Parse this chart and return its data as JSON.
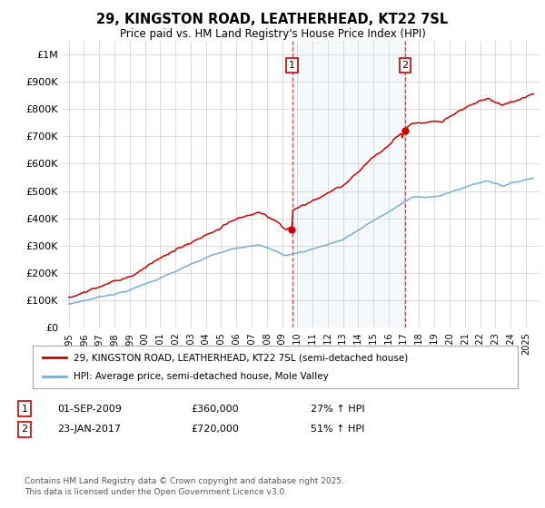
{
  "title_line1": "29, KINGSTON ROAD, LEATHERHEAD, KT22 7SL",
  "title_line2": "Price paid vs. HM Land Registry's House Price Index (HPI)",
  "y_values": [
    0,
    100000,
    200000,
    300000,
    400000,
    500000,
    600000,
    700000,
    800000,
    900000,
    1000000
  ],
  "ylim": [
    0,
    1050000
  ],
  "transaction1_date": 2009.67,
  "transaction1_price": 360000,
  "transaction1_label": "1",
  "transaction1_pct": "27% ↑ HPI",
  "transaction1_display_date": "01-SEP-2009",
  "transaction2_date": 2017.07,
  "transaction2_price": 720000,
  "transaction2_label": "2",
  "transaction2_pct": "51% ↑ HPI",
  "transaction2_display_date": "23-JAN-2017",
  "legend_line1": "29, KINGSTON ROAD, LEATHERHEAD, KT22 7SL (semi-detached house)",
  "legend_line2": "HPI: Average price, semi-detached house, Mole Valley",
  "footer": "Contains HM Land Registry data © Crown copyright and database right 2025.\nThis data is licensed under the Open Government Licence v3.0.",
  "line1_color": "#cc0000",
  "line2_color": "#7aacda",
  "shade_color": "#ddeeff",
  "grid_color": "#cccccc",
  "bg_color": "#ffffff",
  "annotation_box_color": "#cc0000",
  "vline_color": "#cc0000"
}
